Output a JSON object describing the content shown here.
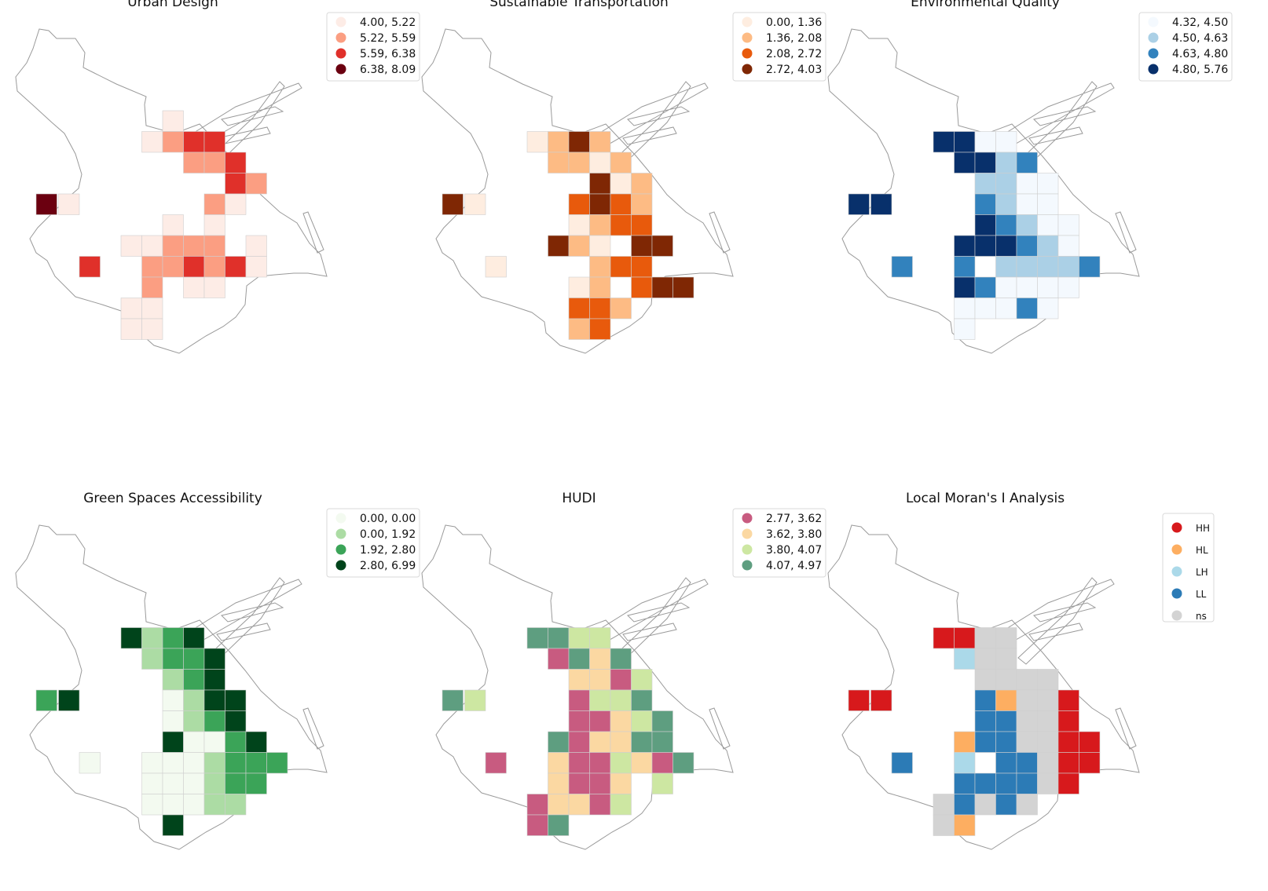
{
  "panels": [
    {
      "title": "Urban Design",
      "legend": [
        {
          "label": "4.00, 5.22",
          "color": "#fdece6"
        },
        {
          "label": "5.22, 5.59",
          "color": "#fb9e82"
        },
        {
          "label": "5.59, 6.38",
          "color": "#e0302a"
        },
        {
          "label": "6.38, 8.09",
          "color": "#6b0010"
        }
      ],
      "cells": [
        "00100000",
        "01233000",
        "00022300",
        "00000320",
        "00002100",
        "00101000",
        "11222010",
        "02232310",
        "02011000",
        "11000000",
        "11000000"
      ],
      "extra": [
        {
          "col": -4,
          "row": 4,
          "cls": 4
        },
        {
          "col": -3,
          "row": 4,
          "cls": 1
        },
        {
          "col": -2,
          "row": 7,
          "cls": 3
        }
      ]
    },
    {
      "title": "Sustainable Transportation",
      "legend": [
        {
          "label": "0.00, 1.36",
          "color": "#feede0"
        },
        {
          "label": "1.36, 2.08",
          "color": "#fdbb84"
        },
        {
          "label": "2.08, 2.72",
          "color": "#e85a0c"
        },
        {
          "label": "2.72, 4.03",
          "color": "#7f2704"
        }
      ],
      "cells": [
        "00000000",
        "12420000",
        "02212000",
        "00041200",
        "00343200",
        "00123300",
        "04210440",
        "00023300",
        "00120344",
        "00332000",
        "00230000"
      ],
      "extra": [
        {
          "col": -4,
          "row": 4,
          "cls": 4
        },
        {
          "col": -3,
          "row": 4,
          "cls": 1
        },
        {
          "col": -2,
          "row": 7,
          "cls": 1
        }
      ]
    },
    {
      "title": "Environmental Quality",
      "legend": [
        {
          "label": "4.32, 4.50",
          "color": "#f4f9fe"
        },
        {
          "label": "4.50, 4.63",
          "color": "#abd0e6"
        },
        {
          "label": "4.63, 4.80",
          "color": "#3282bd"
        },
        {
          "label": "4.80, 5.76",
          "color": "#08306b"
        }
      ],
      "cells": [
        "00000000",
        "44110000",
        "04423000",
        "00221100",
        "00321100",
        "00432110",
        "04443210",
        "03022223",
        "04311110",
        "01113100",
        "01000000"
      ],
      "extra": [
        {
          "col": -4,
          "row": 4,
          "cls": 4
        },
        {
          "col": -3,
          "row": 4,
          "cls": 4
        },
        {
          "col": -2,
          "row": 7,
          "cls": 3
        }
      ]
    },
    {
      "title": "Green Spaces Accessibility",
      "legend": [
        {
          "label": "0.00, 0.00",
          "color": "#f3faf0"
        },
        {
          "label": "0.00, 1.92",
          "color": "#acdca4"
        },
        {
          "label": "1.92, 2.80",
          "color": "#3ba458"
        },
        {
          "label": "2.80, 6.99",
          "color": "#00441b"
        }
      ],
      "cells": [
        "00000000",
        "42340000",
        "02334000",
        "00234000",
        "00124400",
        "00123400",
        "00411340",
        "01112333",
        "01112330",
        "01112200",
        "00400000"
      ],
      "extra": [
        {
          "col": -4,
          "row": 4,
          "cls": 3
        },
        {
          "col": -3,
          "row": 4,
          "cls": 4
        },
        {
          "col": -2,
          "row": 7,
          "cls": 1
        }
      ]
    },
    {
      "title": "HUDI",
      "legend": [
        {
          "label": "2.77, 3.62",
          "color": "#c85b80"
        },
        {
          "label": "3.62, 3.80",
          "color": "#fbd8a2"
        },
        {
          "label": "3.80, 4.07",
          "color": "#cde7a2"
        },
        {
          "label": "4.07, 4.97",
          "color": "#5e9e80"
        }
      ],
      "cells": [
        "00000000",
        "44330000",
        "01424000",
        "00221300",
        "00133400",
        "00112340",
        "04122440",
        "02113214",
        "02112030",
        "12213000",
        "14000000"
      ],
      "extra": [
        {
          "col": -4,
          "row": 4,
          "cls": 4
        },
        {
          "col": -3,
          "row": 4,
          "cls": 3
        },
        {
          "col": -2,
          "row": 7,
          "cls": 1
        }
      ]
    },
    {
      "title": "Local Moran's I Analysis",
      "legend": [
        {
          "label": "HH",
          "color": "#d7191c"
        },
        {
          "label": "HL",
          "color": "#fdae61"
        },
        {
          "label": "LH",
          "color": "#abd9e9"
        },
        {
          "label": "LL",
          "color": "#2c7bb6"
        },
        {
          "label": "ns",
          "color": "#d3d3d3"
        }
      ],
      "cells": [
        "00000000",
        "11550000",
        "03550000",
        "00555500",
        "00425510",
        "00445510",
        "02445511",
        "03044511",
        "04444510",
        "54545000",
        "52000000"
      ],
      "extra": [
        {
          "col": -4,
          "row": 4,
          "cls": 1
        },
        {
          "col": -3,
          "row": 4,
          "cls": 1
        },
        {
          "col": -2,
          "row": 7,
          "cls": 4
        }
      ]
    }
  ],
  "chart_data": {
    "type": "heatmap",
    "panels": [
      "Urban Design",
      "Sustainable Transportation",
      "Environmental Quality",
      "Green Spaces Accessibility",
      "HUDI",
      "Local Moran's I Analysis"
    ]
  }
}
